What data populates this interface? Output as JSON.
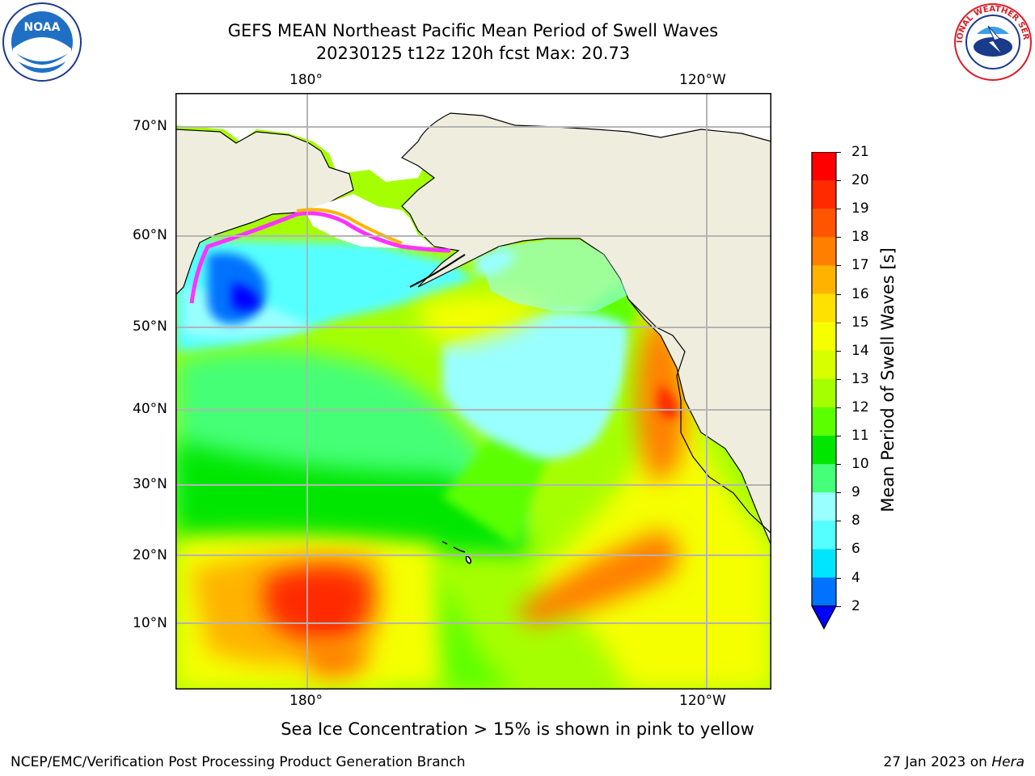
{
  "header": {
    "title_line1": "GEFS MEAN Northeast Pacific Mean Period of Swell Waves",
    "title_line2": "20230125 t12z 120h fcst   Max: 20.73"
  },
  "map": {
    "top_lon_labels": [
      "180°",
      "120°W"
    ],
    "bottom_lon_labels": [
      "180°",
      "120°W"
    ],
    "lat_labels": [
      "70°N",
      "60°N",
      "50°N",
      "40°N",
      "30°N",
      "20°N",
      "10°N"
    ],
    "gridlines": true,
    "colors": {
      "land": "#efeddd",
      "coast": "#000000",
      "grid": "#b4b4b4"
    }
  },
  "colorbar": {
    "label": "Mean Period of Swell Waves [s]",
    "ticks": [
      "21",
      "20",
      "19",
      "18",
      "17",
      "16",
      "15",
      "14",
      "13",
      "12",
      "11",
      "10",
      "9",
      "8",
      "6",
      "4",
      "2"
    ],
    "colors": [
      "#ff0000",
      "#ff2a00",
      "#ff5500",
      "#ff8000",
      "#ffb300",
      "#ffe100",
      "#f5ff00",
      "#d7ff00",
      "#a6ff00",
      "#5cff00",
      "#00e600",
      "#44ff77",
      "#99ffff",
      "#55ffff",
      "#00e5ff",
      "#0072ff"
    ],
    "extend_color": "#0000ff",
    "max_value": "20.73"
  },
  "notes": {
    "ice": "Sea Ice Concentration > 15% is shown in pink to yellow"
  },
  "footer": {
    "left": "NCEP/EMC/Verification Post Processing Product Generation Branch",
    "right_date": "27 Jan 2023 on ",
    "right_machine": "Hera"
  },
  "logos": {
    "noaa_text": "NOAA",
    "nws_text": "NATIONAL WEATHER SERVICE"
  }
}
